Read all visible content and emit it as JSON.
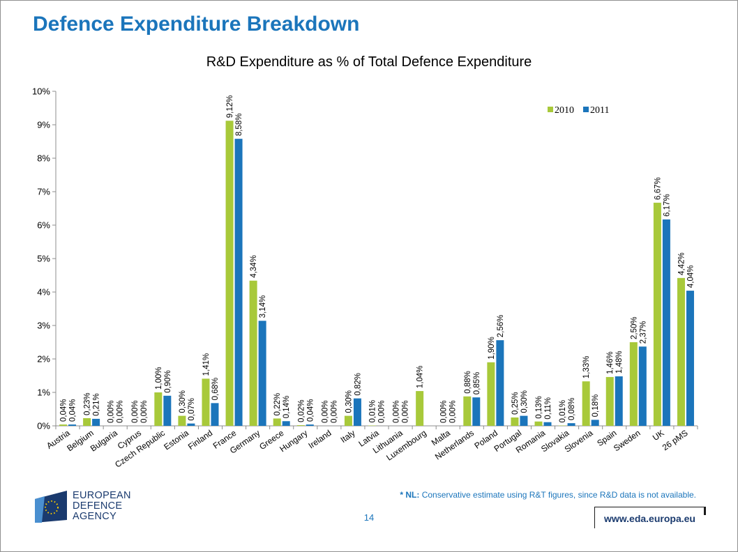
{
  "slide": {
    "title": "Defence Expenditure Breakdown",
    "page_number": "14",
    "footnote_marker": "* NL:",
    "footnote_text": " Conservative estimate using R&T figures, since R&D data is not available.",
    "website": "www.eda.europa.eu",
    "logo_lines": [
      "EUROPEAN",
      "DEFENCE",
      "AGENCY"
    ]
  },
  "colors": {
    "title": "#1b75bb",
    "series_2010": "#a8c93a",
    "series_2011": "#1b75bb",
    "axis": "#8c8c8c"
  },
  "chart_data": {
    "type": "bar",
    "title": "R&D Expenditure as % of Total Defence Expenditure",
    "xlabel": "",
    "ylabel": "",
    "ylim": [
      0,
      10
    ],
    "yticks": [
      "0%",
      "1%",
      "2%",
      "3%",
      "4%",
      "5%",
      "6%",
      "7%",
      "8%",
      "9%",
      "10%"
    ],
    "legend_position": "top-right",
    "grid": false,
    "categories": [
      "Austria",
      "Belgium",
      "Bulgaria",
      "Cyprus",
      "Czech Republic",
      "Estonia",
      "Finland",
      "France",
      "Germany",
      "Greece",
      "Hungary",
      "Ireland",
      "Italy",
      "Latvia",
      "Lithuania",
      "Luxembourg",
      "Malta",
      "Netherlands",
      "Poland",
      "Portugal",
      "Romania",
      "Slovakia",
      "Slovenia",
      "Spain",
      "Sweden",
      "UK",
      "26 pMS"
    ],
    "series": [
      {
        "name": "2010",
        "values": [
          0.04,
          0.23,
          0.0,
          0.0,
          1.0,
          0.3,
          1.41,
          9.12,
          4.34,
          0.22,
          0.02,
          0.0,
          0.3,
          0.01,
          0.0,
          1.04,
          0.0,
          0.88,
          1.9,
          0.25,
          0.13,
          0.01,
          1.33,
          1.46,
          2.5,
          6.67,
          4.42
        ],
        "labels": [
          "0,04%",
          "0,23%",
          "0,00%",
          "0,00%",
          "1,00%",
          "0,30%",
          "1,41%",
          "9,12%",
          "4,34%",
          "0,22%",
          "0,02%",
          "0,00%",
          "0,30%",
          "0,01%",
          "0,00%",
          "1,04%",
          "0,00%",
          "0,88%",
          "1,90%",
          "0,25%",
          "0,13%",
          "0,01%",
          "1,33%",
          "1,46%",
          "2,50%",
          "6,67%",
          "4,42%"
        ]
      },
      {
        "name": "2011",
        "values": [
          0.04,
          0.21,
          0.0,
          0.0,
          0.9,
          0.07,
          0.68,
          8.58,
          3.14,
          0.14,
          0.04,
          0.0,
          0.82,
          0.0,
          0.0,
          null,
          0.0,
          0.85,
          2.56,
          0.3,
          0.11,
          0.08,
          0.18,
          1.48,
          2.37,
          6.17,
          4.04
        ],
        "labels": [
          "0,04%",
          "0,21%",
          "0,00%",
          "0,00%",
          "0,90%",
          "0,07%",
          "0,68%",
          "8,58%",
          "3,14%",
          "0,14%",
          "0,04%",
          "0,00%",
          "0,82%",
          "0,00%",
          "0,00%",
          "",
          "0,00%",
          "0,85%",
          "2,56%",
          "0,30%",
          "0,11%",
          "0,08%",
          "0,18%",
          "1,48%",
          "2,37%",
          "6,17%",
          "4,04%"
        ]
      }
    ]
  }
}
